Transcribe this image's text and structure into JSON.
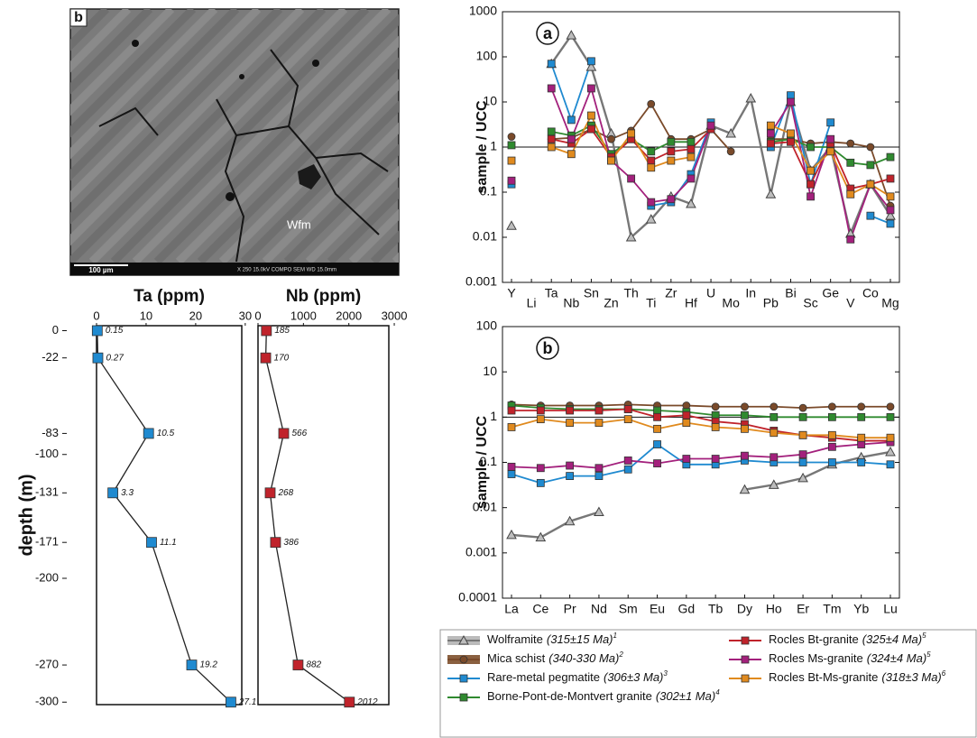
{
  "chart_data": [
    {
      "type": "image",
      "panel_label": "b",
      "annotation": "Wfm",
      "scale_bar": "100 µm",
      "footer": "X 250   15.0kV COMPO SEM   WD 15.0mm"
    },
    {
      "type": "line",
      "title": "Ta (ppm)",
      "ylabel": "depth (m)",
      "x": [
        0.15,
        0.27,
        10.5,
        3.3,
        11.1,
        19.2,
        27.1
      ],
      "y": [
        0,
        -22,
        -83,
        -131,
        -171,
        -270,
        -300
      ],
      "xlim": [
        0,
        29.3
      ],
      "xticks": [
        0,
        10,
        20,
        30
      ],
      "ylim": [
        -302,
        4
      ],
      "yticks": [
        0,
        -22,
        -83,
        -100,
        -131,
        -171,
        -200,
        -270,
        -300
      ],
      "color": "#1f8ad0",
      "line_color": "#222222",
      "marker": "square"
    },
    {
      "type": "line",
      "title": "Nb (ppm)",
      "x": [
        185,
        170,
        566,
        268,
        386,
        882,
        2012
      ],
      "y": [
        0,
        -22,
        -83,
        -131,
        -171,
        -270,
        -300
      ],
      "xlim": [
        0,
        2880
      ],
      "xticks": [
        0,
        1000,
        2000,
        3000
      ],
      "ylim": [
        -302,
        4
      ],
      "color": "#c0232b",
      "line_color": "#222222",
      "marker": "square"
    },
    {
      "type": "line",
      "panel_label": "a",
      "ylabel": "sample / UCC",
      "log_y": true,
      "reference_line": 1,
      "legend": "bottom",
      "categories": [
        "Y",
        "Li",
        "Ta",
        "Nb",
        "Sn",
        "Zn",
        "Th",
        "Ti",
        "Zr",
        "Hf",
        "U",
        "Mo",
        "In",
        "Pb",
        "Bi",
        "Sc",
        "Ge",
        "V",
        "Co",
        "Mg"
      ],
      "ylim": [
        0.001,
        1000
      ],
      "yticks": [
        0.001,
        0.01,
        0.1,
        1,
        10,
        100,
        1000
      ],
      "series": [
        {
          "name": "Wolframite",
          "age": "(315±15 Ma)",
          "ref": "1",
          "color": "#777777",
          "marker": "triangle",
          "values": [
            0.018,
            null,
            70,
            300,
            60,
            2,
            0.01,
            0.025,
            0.08,
            0.055,
            3,
            2,
            12,
            0.09,
            10,
            0.3,
            1,
            0.012,
            0.15,
            0.03
          ]
        },
        {
          "name": "Mica schist",
          "age": "(340-330 Ma)",
          "ref": "2",
          "color": "#7a4a2a",
          "marker": "circle",
          "values": [
            1.7,
            null,
            1.5,
            1.6,
            2.5,
            1.5,
            2.3,
            9,
            1.5,
            1.5,
            2.5,
            0.8,
            null,
            1.5,
            1.5,
            1.2,
            1.3,
            1.2,
            1,
            0.05
          ]
        },
        {
          "name": "Rare-metal pegmatite",
          "age": "(306±3 Ma)",
          "ref": "3",
          "color": "#1f8ad0",
          "marker": "square",
          "values": [
            0.15,
            null,
            70,
            4,
            80,
            null,
            null,
            0.05,
            0.06,
            0.25,
            3.5,
            null,
            null,
            1,
            14,
            0.15,
            3.5,
            null,
            0.03,
            0.02
          ]
        },
        {
          "name": "Borne-Pont-de-Montvert granite",
          "age": "(302±1 Ma)",
          "ref": "4",
          "color": "#2f8a2f",
          "marker": "square",
          "values": [
            1.1,
            null,
            2.2,
            1.8,
            3,
            0.7,
            1.5,
            0.8,
            1.3,
            1.3,
            null,
            null,
            null,
            1.3,
            1.5,
            1,
            1,
            0.45,
            0.4,
            0.6
          ]
        },
        {
          "name": "Rocles Bt-granite",
          "age": "(325±4 Ma)",
          "ref": "5",
          "color": "#c0232b",
          "marker": "square",
          "values": [
            null,
            null,
            1.5,
            1.2,
            2.5,
            0.6,
            1.5,
            0.5,
            0.8,
            0.9,
            2.5,
            null,
            null,
            1.2,
            1.3,
            0.15,
            1.2,
            0.12,
            0.15,
            0.2
          ]
        },
        {
          "name": "Rocles Ms-granite",
          "age": "(324±4 Ma)",
          "ref": "5",
          "color": "#a3207c",
          "marker": "square",
          "values": [
            0.18,
            null,
            20,
            1.5,
            20,
            0.5,
            0.2,
            0.06,
            0.07,
            0.2,
            3,
            null,
            null,
            2,
            10,
            0.08,
            1.5,
            0.009,
            0.15,
            0.04
          ]
        },
        {
          "name": "Rocles Bt-Ms-granite",
          "age": "(318±3 Ma)",
          "ref": "6",
          "color": "#e08a1e",
          "marker": "square",
          "values": [
            0.5,
            null,
            1,
            0.7,
            5,
            0.5,
            2,
            0.35,
            0.5,
            0.6,
            null,
            null,
            null,
            3,
            2,
            0.3,
            0.8,
            0.09,
            0.15,
            0.08
          ]
        }
      ]
    },
    {
      "type": "line",
      "panel_label": "b",
      "ylabel": "sample / UCC",
      "log_y": true,
      "reference_line": 1,
      "categories": [
        "La",
        "Ce",
        "Pr",
        "Nd",
        "Sm",
        "Eu",
        "Gd",
        "Tb",
        "Dy",
        "Ho",
        "Er",
        "Tm",
        "Yb",
        "Lu"
      ],
      "ylim": [
        0.0001,
        100
      ],
      "yticks": [
        0.0001,
        0.001,
        0.01,
        0.1,
        1,
        10,
        100
      ],
      "series": [
        {
          "color": "#777777",
          "marker": "triangle",
          "values": [
            0.0025,
            0.0022,
            0.005,
            0.008,
            null,
            null,
            null,
            null,
            0.025,
            0.032,
            0.045,
            0.09,
            0.13,
            0.17
          ]
        },
        {
          "color": "#7a4a2a",
          "marker": "circle",
          "values": [
            1.9,
            1.8,
            1.8,
            1.8,
            1.9,
            1.8,
            1.8,
            1.7,
            1.7,
            1.7,
            1.6,
            1.7,
            1.7,
            1.7
          ]
        },
        {
          "color": "#1f8ad0",
          "marker": "square",
          "values": [
            0.055,
            0.035,
            0.05,
            0.05,
            0.07,
            0.25,
            0.09,
            0.09,
            0.11,
            0.1,
            0.1,
            0.1,
            0.1,
            0.09
          ]
        },
        {
          "color": "#2f8a2f",
          "marker": "square",
          "values": [
            1.8,
            1.6,
            1.5,
            1.5,
            1.5,
            1.4,
            1.3,
            1.1,
            1.1,
            1,
            1,
            1,
            1,
            1
          ]
        },
        {
          "color": "#c0232b",
          "marker": "square",
          "values": [
            1.4,
            1.4,
            1.4,
            1.4,
            1.5,
            1,
            1.1,
            0.8,
            0.7,
            0.5,
            0.4,
            0.35,
            0.3,
            0.3
          ]
        },
        {
          "color": "#a3207c",
          "marker": "square",
          "values": [
            0.08,
            0.075,
            0.085,
            0.075,
            0.11,
            0.095,
            0.12,
            0.12,
            0.14,
            0.13,
            0.15,
            0.22,
            0.25,
            0.28
          ]
        },
        {
          "color": "#e08a1e",
          "marker": "square",
          "values": [
            0.6,
            0.9,
            0.75,
            0.75,
            0.9,
            0.55,
            0.75,
            0.6,
            0.55,
            0.45,
            0.4,
            0.4,
            0.35,
            0.35
          ]
        }
      ]
    }
  ]
}
